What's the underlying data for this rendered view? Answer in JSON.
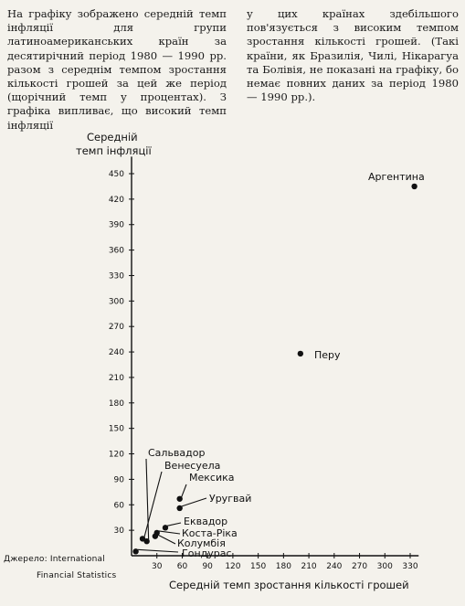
{
  "text": {
    "left": "На графіку зображено середній темп інфляції для групи латиноамериканських країн за десятирічний період 1980 — 1990 рр. разом з середнім темпом зростання кількості грошей за цей же період (щорічний темп у процентах). З графіка випливає, що високий темп інфляції",
    "right": "у цих країнах здебільшого пов'язується з високим темпом зростання кількості грошей. (Такі країни, як Бразилія, Чилі, Нікарагуа та Болівія, не показані на графіку, бо немає повних даних за період 1980 — 1990 рр.)."
  },
  "chart_data": {
    "type": "scatter",
    "ylabel_line1": "Середній",
    "ylabel_line2": "темп інфляції",
    "xlabel": "Середній темп зростання кількості грошей",
    "source_line1": "Джерело: International",
    "source_line2": "Financial Statistics",
    "xlim": [
      0,
      340
    ],
    "ylim": [
      0,
      470
    ],
    "x_ticks": [
      30,
      60,
      90,
      120,
      150,
      180,
      210,
      240,
      270,
      300,
      330
    ],
    "y_ticks": [
      30,
      60,
      90,
      120,
      150,
      180,
      210,
      240,
      270,
      300,
      330,
      360,
      390,
      420,
      450
    ],
    "points": [
      {
        "name": "Аргентина",
        "x": 335,
        "y": 435
      },
      {
        "name": "Перу",
        "x": 200,
        "y": 238
      },
      {
        "name": "Мексика",
        "x": 57,
        "y": 67
      },
      {
        "name": "Уругвай",
        "x": 57,
        "y": 56
      },
      {
        "name": "Сальвадор",
        "x": 18,
        "y": 17
      },
      {
        "name": "Венесуела",
        "x": 13,
        "y": 20
      },
      {
        "name": "Еквадор",
        "x": 40,
        "y": 33
      },
      {
        "name": "Коста-Ріка",
        "x": 30,
        "y": 27
      },
      {
        "name": "Колумбія",
        "x": 28,
        "y": 23
      },
      {
        "name": "Гондурас",
        "x": 5,
        "y": 5
      }
    ]
  }
}
